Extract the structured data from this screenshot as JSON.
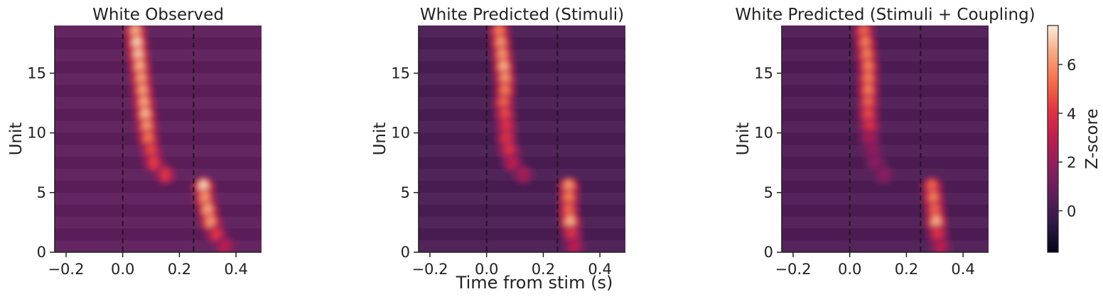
{
  "figure": {
    "shared_xlabel": "Time from stim (s)"
  },
  "chart_data": [
    {
      "type": "heatmap",
      "title": "White Observed",
      "ylabel": "Unit",
      "xlim": [
        -0.24,
        0.49
      ],
      "ylim": [
        0,
        19
      ],
      "xticks": [
        -0.2,
        0.0,
        0.2,
        0.4
      ],
      "xtick_labels": [
        "−0.2",
        "0.0",
        "0.2",
        "0.4"
      ],
      "yticks": [
        0,
        5,
        10,
        15
      ],
      "ytick_labels": [
        "0",
        "5",
        "10",
        "15"
      ],
      "vlines": [
        0.0,
        0.25
      ],
      "background_zscore": 0.7,
      "peaks": [
        {
          "unit": 18,
          "time": 0.045,
          "value": 6.5
        },
        {
          "unit": 17,
          "time": 0.05,
          "value": 7.0
        },
        {
          "unit": 16,
          "time": 0.055,
          "value": 6.8
        },
        {
          "unit": 15,
          "time": 0.06,
          "value": 6.5
        },
        {
          "unit": 14,
          "time": 0.065,
          "value": 6.2
        },
        {
          "unit": 13,
          "time": 0.07,
          "value": 6.2
        },
        {
          "unit": 12,
          "time": 0.075,
          "value": 6.3
        },
        {
          "unit": 11,
          "time": 0.08,
          "value": 6.6
        },
        {
          "unit": 10,
          "time": 0.085,
          "value": 6.0
        },
        {
          "unit": 9,
          "time": 0.09,
          "value": 5.3
        },
        {
          "unit": 8,
          "time": 0.1,
          "value": 4.5
        },
        {
          "unit": 7,
          "time": 0.11,
          "value": 4.2
        },
        {
          "unit": 6,
          "time": 0.15,
          "value": 4.0
        },
        {
          "unit": 5,
          "time": 0.285,
          "value": 7.0
        },
        {
          "unit": 4,
          "time": 0.29,
          "value": 6.0
        },
        {
          "unit": 3,
          "time": 0.3,
          "value": 6.3
        },
        {
          "unit": 2,
          "time": 0.31,
          "value": 6.0
        },
        {
          "unit": 1,
          "time": 0.33,
          "value": 4.0
        },
        {
          "unit": 0,
          "time": 0.36,
          "value": 3.0
        }
      ]
    },
    {
      "type": "heatmap",
      "title": "White Predicted (Stimuli)",
      "ylabel": "Unit",
      "xlim": [
        -0.24,
        0.49
      ],
      "ylim": [
        0,
        19
      ],
      "xticks": [
        -0.2,
        0.0,
        0.2,
        0.4
      ],
      "xtick_labels": [
        "−0.2",
        "0.0",
        "0.2",
        "0.4"
      ],
      "yticks": [
        0,
        5,
        10,
        15
      ],
      "ytick_labels": [
        "0",
        "5",
        "10",
        "15"
      ],
      "vlines": [
        0.0,
        0.25
      ],
      "background_zscore": 0.2,
      "peaks": [
        {
          "unit": 18,
          "time": 0.045,
          "value": 5.5
        },
        {
          "unit": 17,
          "time": 0.05,
          "value": 6.0
        },
        {
          "unit": 16,
          "time": 0.055,
          "value": 6.0
        },
        {
          "unit": 15,
          "time": 0.06,
          "value": 6.5
        },
        {
          "unit": 14,
          "time": 0.065,
          "value": 6.0
        },
        {
          "unit": 13,
          "time": 0.065,
          "value": 5.5
        },
        {
          "unit": 12,
          "time": 0.06,
          "value": 5.0
        },
        {
          "unit": 11,
          "time": 0.065,
          "value": 4.5
        },
        {
          "unit": 10,
          "time": 0.07,
          "value": 4.0
        },
        {
          "unit": 9,
          "time": 0.07,
          "value": 4.0
        },
        {
          "unit": 8,
          "time": 0.08,
          "value": 4.0
        },
        {
          "unit": 7,
          "time": 0.09,
          "value": 3.0
        },
        {
          "unit": 6,
          "time": 0.13,
          "value": 2.5
        },
        {
          "unit": 5,
          "time": 0.29,
          "value": 6.0
        },
        {
          "unit": 4,
          "time": 0.29,
          "value": 5.5
        },
        {
          "unit": 3,
          "time": 0.29,
          "value": 5.0
        },
        {
          "unit": 2,
          "time": 0.295,
          "value": 6.5
        },
        {
          "unit": 1,
          "time": 0.3,
          "value": 4.0
        },
        {
          "unit": 0,
          "time": 0.31,
          "value": 3.0
        }
      ]
    },
    {
      "type": "heatmap",
      "title": "White Predicted (Stimuli + Coupling)",
      "ylabel": "Unit",
      "xlim": [
        -0.24,
        0.49
      ],
      "ylim": [
        0,
        19
      ],
      "xticks": [
        -0.2,
        0.0,
        0.2,
        0.4
      ],
      "xtick_labels": [
        "−0.2",
        "0.0",
        "0.2",
        "0.4"
      ],
      "yticks": [
        0,
        5,
        10,
        15
      ],
      "ytick_labels": [
        "0",
        "5",
        "10",
        "15"
      ],
      "vlines": [
        0.0,
        0.25
      ],
      "background_zscore": 0.3,
      "peaks": [
        {
          "unit": 18,
          "time": 0.05,
          "value": 5.0
        },
        {
          "unit": 17,
          "time": 0.055,
          "value": 5.5
        },
        {
          "unit": 16,
          "time": 0.06,
          "value": 5.5
        },
        {
          "unit": 15,
          "time": 0.065,
          "value": 5.5
        },
        {
          "unit": 14,
          "time": 0.065,
          "value": 5.5
        },
        {
          "unit": 13,
          "time": 0.065,
          "value": 5.5
        },
        {
          "unit": 12,
          "time": 0.065,
          "value": 5.0
        },
        {
          "unit": 11,
          "time": 0.065,
          "value": 4.5
        },
        {
          "unit": 10,
          "time": 0.07,
          "value": 4.0
        },
        {
          "unit": 9,
          "time": 0.07,
          "value": 2.5
        },
        {
          "unit": 8,
          "time": 0.08,
          "value": 2.0
        },
        {
          "unit": 7,
          "time": 0.09,
          "value": 1.8
        },
        {
          "unit": 6,
          "time": 0.12,
          "value": 1.8
        },
        {
          "unit": 5,
          "time": 0.29,
          "value": 5.0
        },
        {
          "unit": 4,
          "time": 0.295,
          "value": 5.5
        },
        {
          "unit": 3,
          "time": 0.3,
          "value": 5.0
        },
        {
          "unit": 2,
          "time": 0.305,
          "value": 6.5
        },
        {
          "unit": 1,
          "time": 0.31,
          "value": 4.0
        },
        {
          "unit": 0,
          "time": 0.32,
          "value": 3.0
        }
      ]
    }
  ],
  "colorbar": {
    "label": "Z-score",
    "range": [
      -1.7,
      7.6
    ],
    "ticks": [
      0,
      2,
      4,
      6
    ],
    "tick_labels": [
      "0",
      "2",
      "4",
      "6"
    ],
    "colormap": "rocket",
    "colormap_stops": [
      "#03051a",
      "#2d1846",
      "#5c1f5c",
      "#8b1f5e",
      "#ba1e4f",
      "#e13342",
      "#f36e49",
      "#f7a57d",
      "#faebdd"
    ]
  }
}
